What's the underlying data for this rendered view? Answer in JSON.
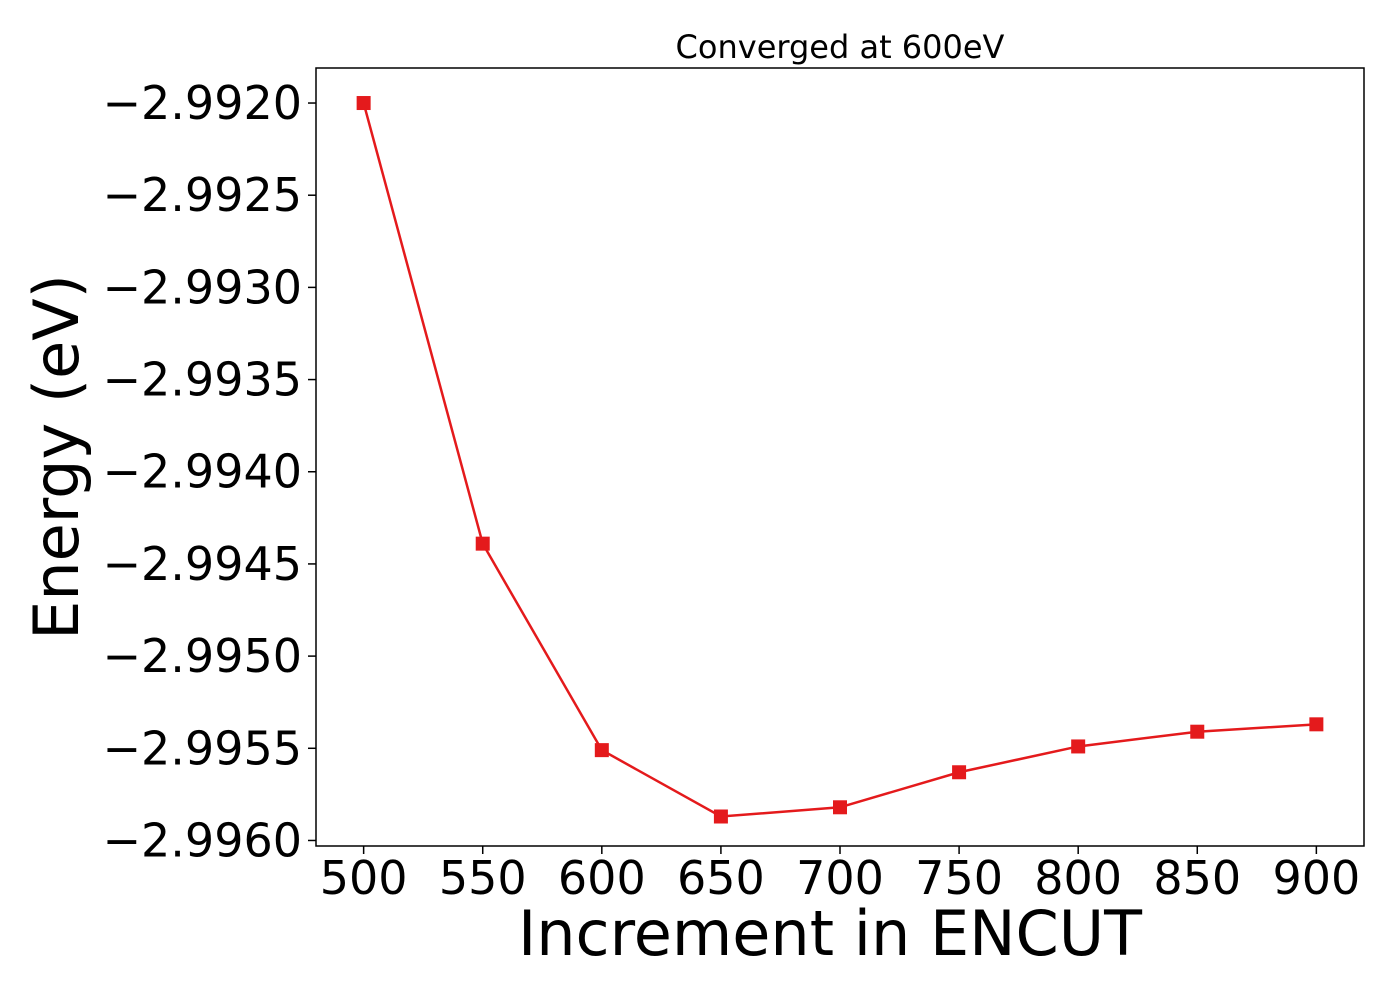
{
  "chart_data": {
    "type": "line",
    "title": "Converged at 600eV",
    "xlabel": "Increment in ENCUT",
    "ylabel": "Energy (eV)",
    "x": [
      500,
      550,
      600,
      650,
      700,
      750,
      800,
      850,
      900
    ],
    "series": [
      {
        "values": [
          -2.992,
          -2.99439,
          -2.99551,
          -2.99587,
          -2.99582,
          -2.99563,
          -2.99549,
          -2.99541,
          -2.99537
        ],
        "color": "#e41a1c",
        "marker": "square"
      }
    ],
    "xticks": [
      500,
      550,
      600,
      650,
      700,
      750,
      800,
      850,
      900
    ],
    "xtick_labels": [
      "500",
      "550",
      "600",
      "650",
      "700",
      "750",
      "800",
      "850",
      "900"
    ],
    "yticks": [
      -2.992,
      -2.9925,
      -2.993,
      -2.9935,
      -2.994,
      -2.9945,
      -2.995,
      -2.9955,
      -2.996
    ],
    "ytick_labels": [
      "−2.9920",
      "−2.9925",
      "−2.9930",
      "−2.9935",
      "−2.9940",
      "−2.9945",
      "−2.9950",
      "−2.9955",
      "−2.9960"
    ],
    "xlim": [
      480,
      920
    ],
    "ylim": [
      -2.99603,
      -2.99181
    ],
    "grid": false,
    "legend": "none"
  }
}
